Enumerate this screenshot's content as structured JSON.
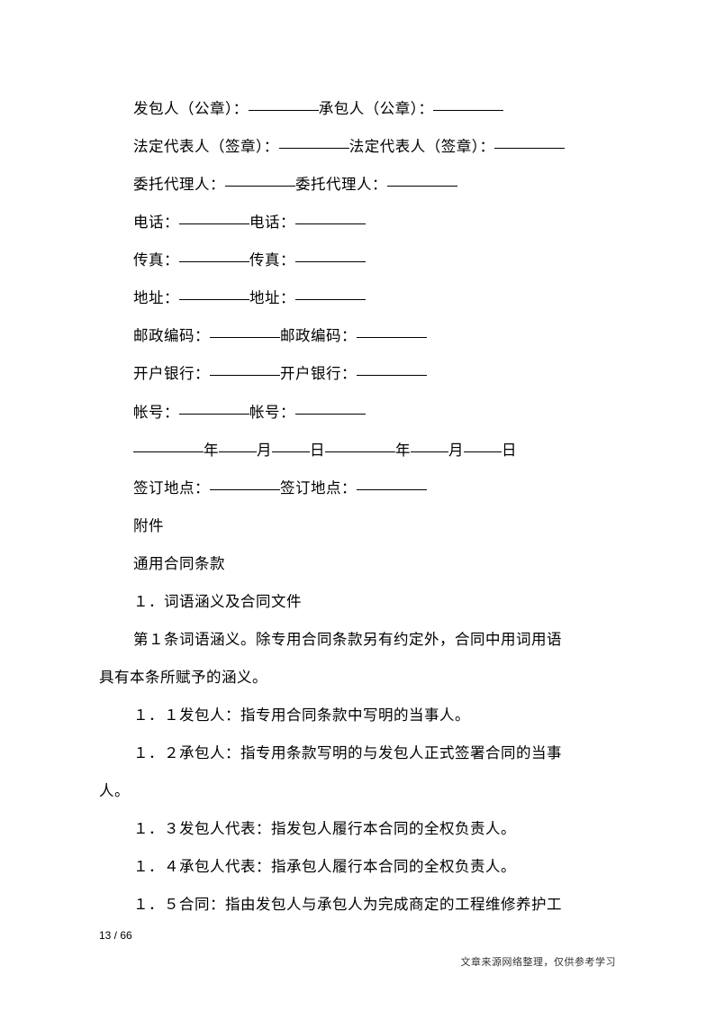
{
  "lines": {
    "l1_a": "发包人（公章）：",
    "l1_b": "承包人（公章）：",
    "l2_a": "法定代表人（签章）：",
    "l2_b": "法定代表人（签章）：",
    "l3_a": "委托代理人：",
    "l3_b": "委托代理人：",
    "l4_a": "电话：",
    "l4_b": "电话：",
    "l5_a": "传真：",
    "l5_b": "传真：",
    "l6_a": "地址：",
    "l6_b": "地址：",
    "l7_a": "邮政编码：",
    "l7_b": "邮政编码：",
    "l8_a": "开户银行：",
    "l8_b": "开户银行：",
    "l9_a": "帐号：",
    "l9_b": "帐号：",
    "l10_y1": "年",
    "l10_m1": "月",
    "l10_d1": "日",
    "l10_y2": "年",
    "l10_m2": "月",
    "l10_d2": "日",
    "l11_a": "签订地点：",
    "l11_b": "签订地点：",
    "l12": "附件",
    "l13": "通用合同条款",
    "l14": "１．词语涵义及合同文件",
    "l15": "第１条词语涵义。除专用合同条款另有约定外，合同中用词用语",
    "l15b": "具有本条所赋予的涵义。",
    "l16": "１．１发包人：指专用合同条款中写明的当事人。",
    "l17": "１．２承包人：指专用条款写明的与发包人正式签署合同的当事",
    "l17b": "人。",
    "l18": "１．３发包人代表：指发包人履行本合同的全权负责人。",
    "l19": "１．４承包人代表：指承包人履行本合同的全权负责人。",
    "l20": "１．５合同：指由发包人与承包人为完成商定的工程维修养护工"
  },
  "pageNumber": "13 / 66",
  "footerNote": "文章来源网络整理，仅供参考学习"
}
